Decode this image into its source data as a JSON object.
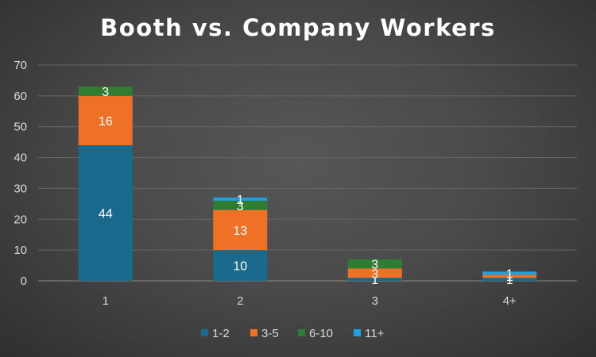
{
  "chart_data": {
    "type": "bar",
    "stacked": true,
    "title": "Booth vs. Company Workers",
    "categories": [
      "1",
      "2",
      "3",
      "4+"
    ],
    "series": [
      {
        "name": "1-2",
        "values": [
          44,
          10,
          1,
          1
        ],
        "color": "#1a6a8e"
      },
      {
        "name": "3-5",
        "values": [
          16,
          13,
          3,
          1
        ],
        "color": "#ef7125"
      },
      {
        "name": "6-10",
        "values": [
          3,
          3,
          3,
          0
        ],
        "color": "#2e7d32"
      },
      {
        "name": "11+",
        "values": [
          0,
          1,
          0,
          1
        ],
        "color": "#1da1e0"
      }
    ],
    "ylim": [
      0,
      70
    ],
    "yticks": [
      0,
      10,
      20,
      30,
      40,
      50,
      60,
      70
    ],
    "grid": true,
    "legend_position": "bottom"
  }
}
